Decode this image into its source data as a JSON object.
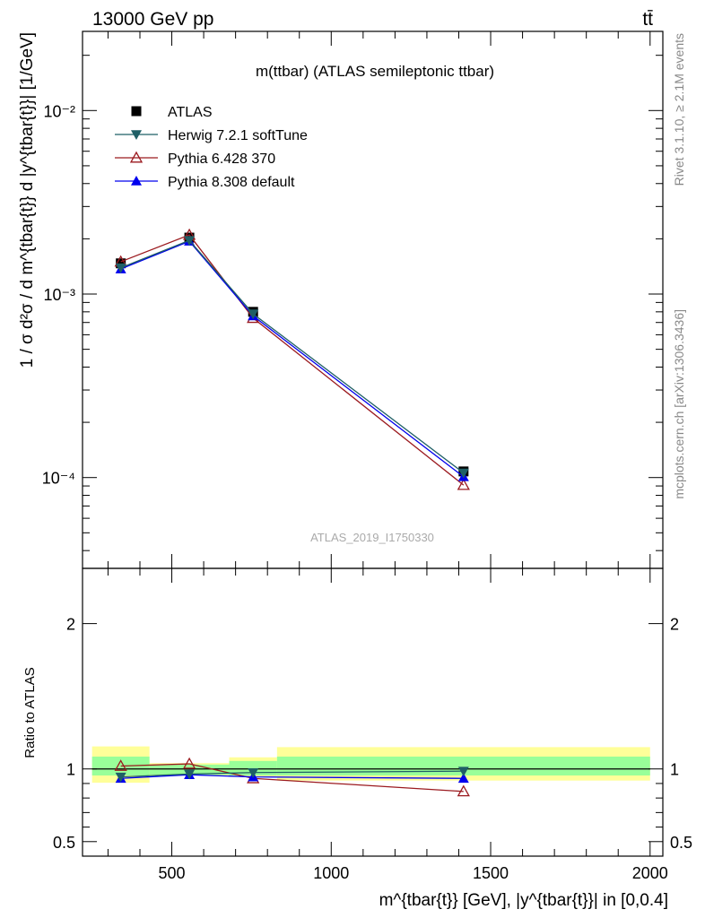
{
  "header": {
    "energy_label": "13000 GeV pp",
    "process_label": "tt̄"
  },
  "side_labels": {
    "rivet": "Rivet 3.1.10, ≥ 2.1M events",
    "source": "mcplots.cern.ch [arXiv:1306.3436]"
  },
  "chart_data": [
    {
      "type": "line",
      "title": "m(ttbar) (ATLAS semileptonic ttbar)",
      "watermark": "ATLAS_2019_I1750330",
      "ylabel": "1 / σ d²σ / d m^{tbar{t}} d |y^{tbar{t}}| [1/GeV]",
      "xlim": [
        220,
        2040
      ],
      "ylim": [
        3.2e-05,
        0.027
      ],
      "yscale": "log",
      "legend_position": "top-left",
      "yticks": [
        {
          "value": 0.0001,
          "label": "10⁻⁴"
        },
        {
          "value": 0.001,
          "label": "10⁻³"
        },
        {
          "value": 0.01,
          "label": "10⁻²"
        }
      ],
      "x": [
        340,
        555,
        755,
        1415
      ],
      "series": [
        {
          "name": "ATLAS",
          "marker": "square",
          "color": "#000000",
          "values": [
            0.00147,
            0.00203,
            0.0008,
            0.000108
          ]
        },
        {
          "name": "Herwig 7.2.1 softTune",
          "marker": "triangle-down",
          "color": "#1f5f66",
          "values": [
            0.00139,
            0.00196,
            0.00078,
            0.000106
          ]
        },
        {
          "name": "Pythia 6.428 370",
          "marker": "triangle-open",
          "color": "#9b1a1f",
          "values": [
            0.0015,
            0.0021,
            0.00074,
            9.1e-05
          ]
        },
        {
          "name": "Pythia 8.308 default",
          "marker": "triangle-up",
          "color": "#0000ee",
          "values": [
            0.00137,
            0.00194,
            0.00076,
            0.000101
          ]
        }
      ]
    },
    {
      "type": "line",
      "ylabel": "Ratio to ATLAS",
      "xlabel": "m^{tbar{t}} [GeV], |y^{tbar{t}}| in [0,0.4]",
      "xlim": [
        220,
        2040
      ],
      "ylim": [
        0.4,
        2.38
      ],
      "xticks": [
        500,
        1000,
        1500,
        2000
      ],
      "yticks": [
        {
          "value": 0.5,
          "label": "0.5"
        },
        {
          "value": 1,
          "label": "1"
        },
        {
          "value": 2,
          "label": "2"
        }
      ],
      "bins": [
        {
          "xlo": 250,
          "xhi": 430,
          "stat_lo": 0.955,
          "stat_hi": 1.085,
          "tot_lo": 0.905,
          "tot_hi": 1.155
        },
        {
          "xlo": 430,
          "xhi": 680,
          "stat_lo": 0.96,
          "stat_hi": 1.03,
          "tot_lo": 0.955,
          "tot_hi": 1.04
        },
        {
          "xlo": 680,
          "xhi": 830,
          "stat_lo": 0.955,
          "stat_hi": 1.055,
          "tot_lo": 0.945,
          "tot_hi": 1.08
        },
        {
          "xlo": 830,
          "xhi": 2000,
          "stat_lo": 0.955,
          "stat_hi": 1.085,
          "tot_lo": 0.92,
          "tot_hi": 1.15
        }
      ],
      "x": [
        340,
        555,
        755,
        1415
      ],
      "series": [
        {
          "name": "Herwig 7.2.1 softTune",
          "marker": "triangle-down",
          "color": "#1f5f66",
          "values": [
            0.945,
            0.965,
            0.975,
            0.985
          ]
        },
        {
          "name": "Pythia 6.428 370",
          "marker": "triangle-open",
          "color": "#9b1a1f",
          "values": [
            1.02,
            1.035,
            0.935,
            0.845
          ]
        },
        {
          "name": "Pythia 8.308 default",
          "marker": "triangle-up",
          "color": "#0000ee",
          "values": [
            0.935,
            0.96,
            0.945,
            0.935
          ]
        }
      ]
    }
  ]
}
